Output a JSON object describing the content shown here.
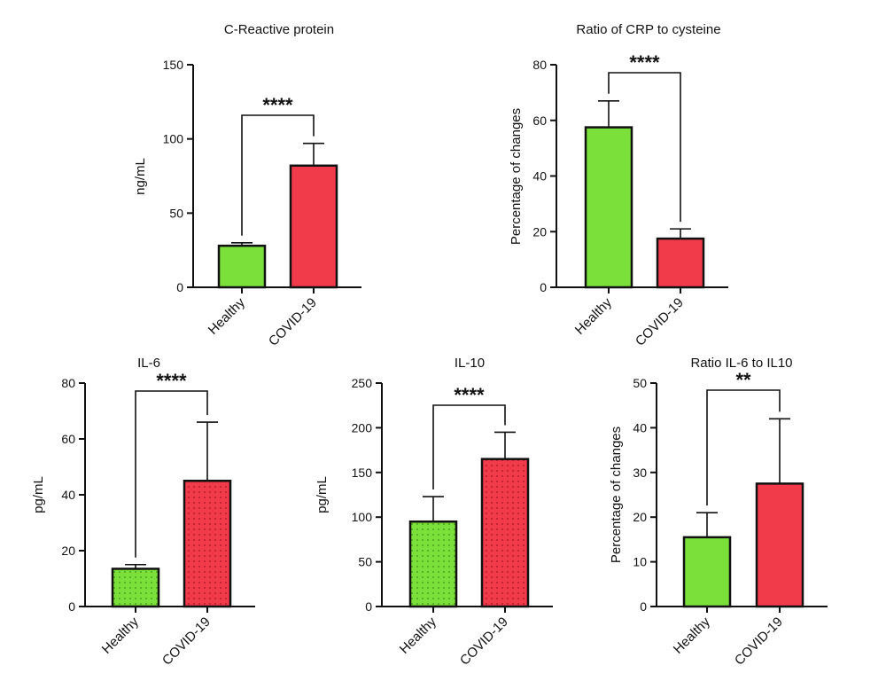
{
  "colors": {
    "healthy": "#7be03a",
    "covid": "#f23b4a",
    "axis": "#111111"
  },
  "chart_data": [
    {
      "type": "bar",
      "title": "C-Reactive protein",
      "ylabel": "ng/mL",
      "categories": [
        "Healthy",
        "COVID-19"
      ],
      "values": [
        28,
        82
      ],
      "errors": [
        2,
        15
      ],
      "ylim": [
        0,
        150
      ],
      "yticks": [
        0,
        50,
        100,
        150
      ],
      "significance": "****",
      "pattern": false
    },
    {
      "type": "bar",
      "title": "Ratio of CRP to cysteine",
      "ylabel": "Percentage of changes",
      "categories": [
        "Healthy",
        "COVID-19"
      ],
      "values": [
        57.5,
        17.5
      ],
      "errors": [
        9.5,
        3.5
      ],
      "ylim": [
        0,
        80
      ],
      "yticks": [
        0,
        20,
        40,
        60,
        80
      ],
      "significance": "****",
      "pattern": false
    },
    {
      "type": "bar",
      "title": "IL-6",
      "ylabel": "pg/mL",
      "categories": [
        "Healthy",
        "COVID-19"
      ],
      "values": [
        13.5,
        45
      ],
      "errors": [
        1.5,
        21
      ],
      "ylim": [
        0,
        80
      ],
      "yticks": [
        0,
        20,
        40,
        60,
        80
      ],
      "significance": "****",
      "pattern": true
    },
    {
      "type": "bar",
      "title": "IL-10",
      "ylabel": "pg/mL",
      "categories": [
        "Healthy",
        "COVID-19"
      ],
      "values": [
        95,
        165
      ],
      "errors": [
        28,
        30
      ],
      "ylim": [
        0,
        250
      ],
      "yticks": [
        0,
        50,
        100,
        150,
        200,
        250
      ],
      "significance": "****",
      "pattern": true
    },
    {
      "type": "bar",
      "title": "Ratio IL-6 to IL10",
      "ylabel": "Percentage of changes",
      "categories": [
        "Healthy",
        "COVID-19"
      ],
      "values": [
        15.5,
        27.5
      ],
      "errors": [
        5.5,
        14.5
      ],
      "ylim": [
        0,
        50
      ],
      "yticks": [
        0,
        10,
        20,
        30,
        40,
        50
      ],
      "significance": "**",
      "pattern": false
    }
  ]
}
